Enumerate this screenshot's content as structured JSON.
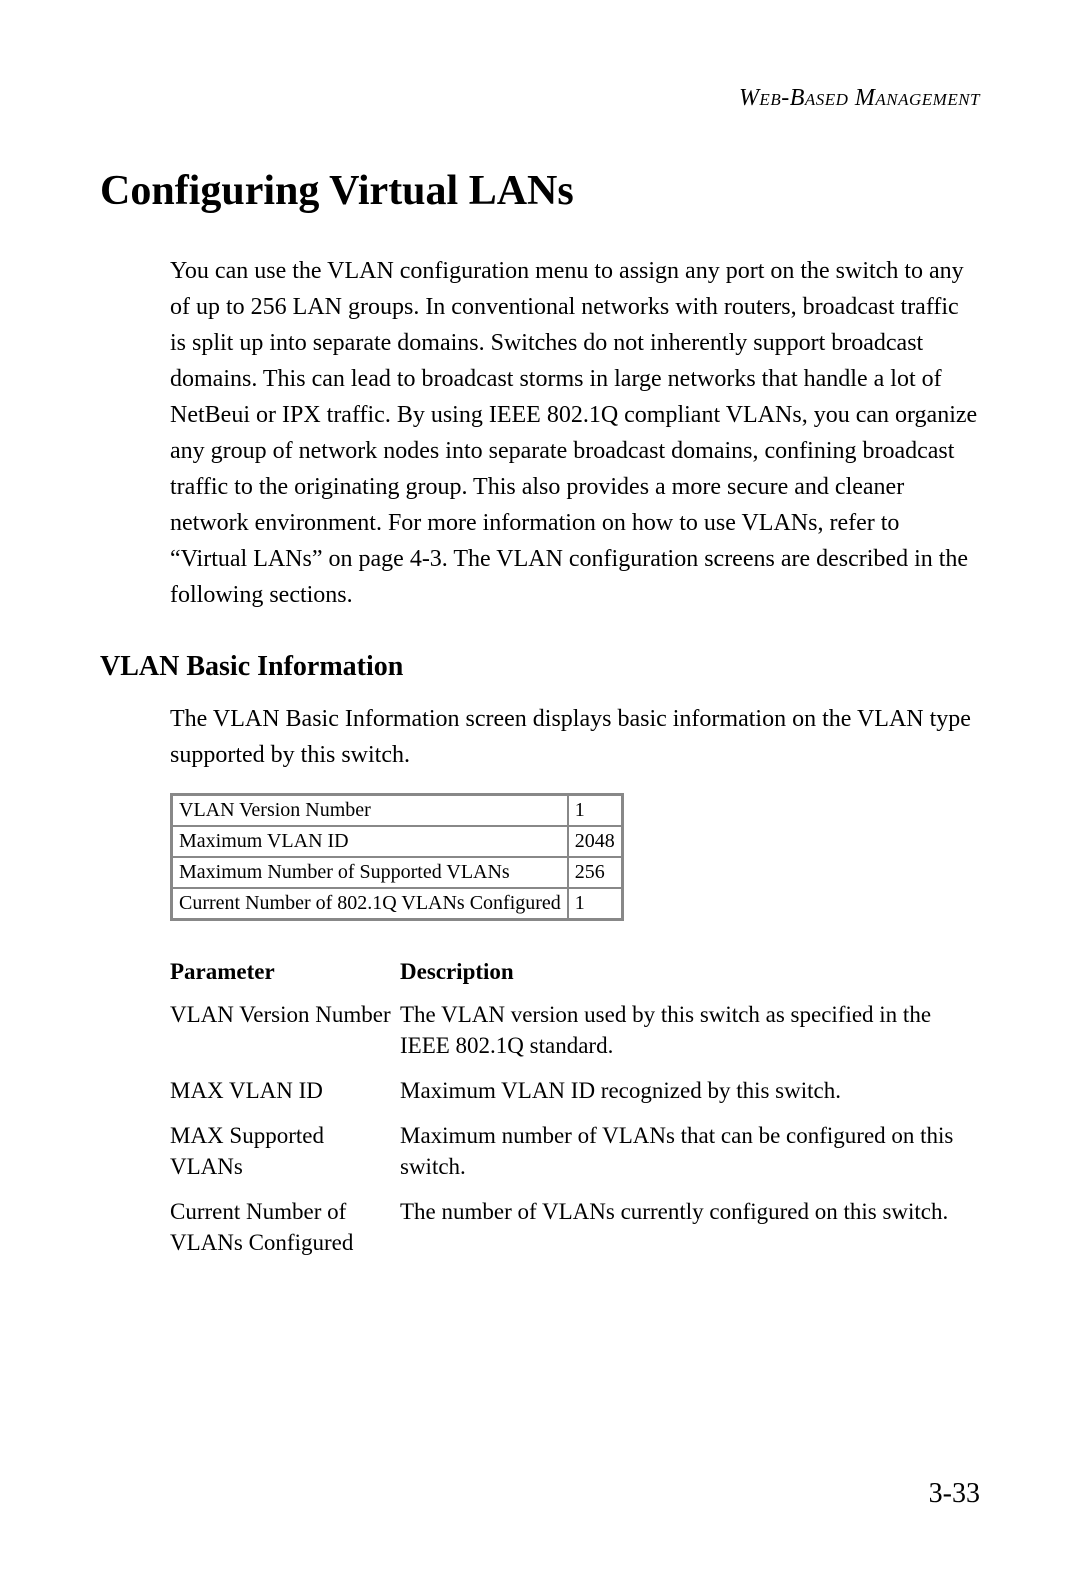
{
  "header": {
    "text": "Web-Based Management"
  },
  "main_heading": "Configuring Virtual LANs",
  "intro_paragraph": "You can use the VLAN configuration menu to assign any port on the switch to any of up to 256 LAN groups. In conventional networks with routers, broadcast traffic is split up into separate domains. Switches do not inherently support broadcast domains. This can lead to broadcast storms in large networks that handle a lot of NetBeui or IPX traffic. By using IEEE 802.1Q compliant VLANs, you can organize any group of network nodes into separate broadcast domains, confining broadcast traffic to the originating group. This also provides a more secure and cleaner network environment. For more information on how to use VLANs, refer to “Virtual LANs” on page 4-3. The VLAN configuration screens are described in the following sections.",
  "sub_heading": "VLAN Basic Information",
  "sub_paragraph": "The VLAN Basic Information screen displays basic information on the VLAN type supported by this switch.",
  "vlan_table": {
    "rows": [
      {
        "label": "VLAN Version Number",
        "value": "1"
      },
      {
        "label": "Maximum VLAN ID",
        "value": "2048"
      },
      {
        "label": "Maximum Number of Supported VLANs",
        "value": "256"
      },
      {
        "label": "Current Number of 802.1Q VLANs Configured",
        "value": "1"
      }
    ],
    "border_color": "#888888",
    "background_color": "#ffffff",
    "font_size": 20
  },
  "param_table": {
    "headers": {
      "col1": "Parameter",
      "col2": "Description"
    },
    "rows": [
      {
        "param": "VLAN Version Number",
        "desc": "The VLAN version used by this switch as specified in the IEEE 802.1Q standard."
      },
      {
        "param": "MAX VLAN ID",
        "desc": "Maximum VLAN ID recognized by this switch."
      },
      {
        "param": "MAX Supported VLANs",
        "desc": "Maximum number of VLANs that can be configured on this switch."
      },
      {
        "param": "Current Number of VLANs Configured",
        "desc": "The number of VLANs currently configured on this switch."
      }
    ],
    "header_fontsize": 23,
    "cell_fontsize": 23,
    "col1_width": 230
  },
  "page_number": "3-33",
  "colors": {
    "text": "#000000",
    "background": "#ffffff",
    "table_border": "#888888"
  },
  "typography": {
    "body_font": "Georgia, Times New Roman, serif",
    "main_heading_size": 42,
    "sub_heading_size": 28,
    "body_size": 24,
    "header_size": 24,
    "page_number_size": 28
  }
}
